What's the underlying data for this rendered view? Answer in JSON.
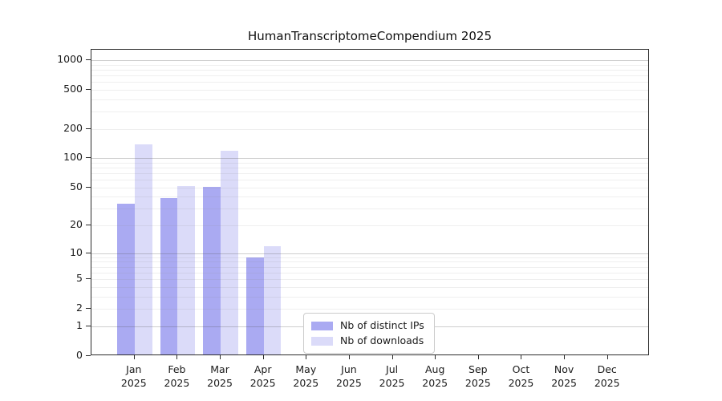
{
  "chart_data": {
    "type": "bar",
    "title": "HumanTranscriptomeCompendium 2025",
    "categories": [
      "Jan",
      "Feb",
      "Mar",
      "Apr",
      "May",
      "Jun",
      "Jul",
      "Aug",
      "Sep",
      "Oct",
      "Nov",
      "Dec"
    ],
    "category_year": "2025",
    "series": [
      {
        "name": "Nb of distinct IPs",
        "color": "#aaaaf2",
        "values": [
          34,
          39,
          51,
          9,
          0,
          0,
          0,
          0,
          0,
          0,
          0,
          0
        ]
      },
      {
        "name": "Nb of downloads",
        "color": "#dbdbf9",
        "values": [
          140,
          52,
          120,
          12,
          0,
          0,
          0,
          0,
          0,
          0,
          0,
          0
        ]
      }
    ],
    "y_axis": {
      "scale": "log1p",
      "tick_labels": [
        1000,
        500,
        200,
        100,
        50,
        20,
        10,
        5,
        2,
        1,
        0
      ],
      "major_gridlines": [
        1,
        10,
        100,
        1000
      ],
      "minor_gridlines": [
        2,
        3,
        4,
        5,
        6,
        7,
        8,
        9,
        20,
        30,
        40,
        50,
        60,
        70,
        80,
        90,
        200,
        300,
        400,
        500,
        600,
        700,
        800,
        900
      ],
      "max": 1000,
      "min": 0
    },
    "legend": {
      "position": "lower-center"
    },
    "grid": true
  },
  "colors": {
    "spine": "#2b2b2b",
    "text": "#1a1a1a",
    "background": "#ffffff",
    "legend_border": "#cccccc"
  }
}
